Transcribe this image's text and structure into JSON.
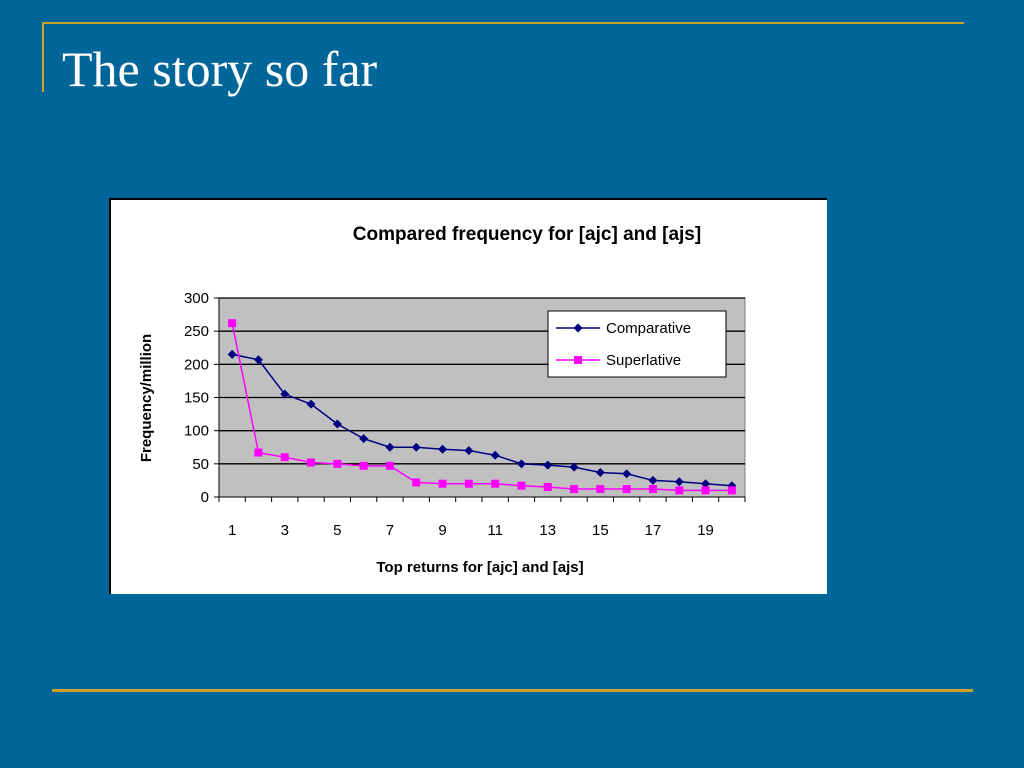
{
  "slide": {
    "title": "The story so far",
    "colors": {
      "background": "#006699",
      "accent_rule": "#c9a227",
      "title_text": "#ffffff"
    }
  },
  "chart_data": {
    "type": "line",
    "title": "Compared frequency for [ajc] and [ajs]",
    "xlabel": "Top returns for [ajc] and [ajs]",
    "ylabel": "Frequency/million",
    "x": [
      1,
      2,
      3,
      4,
      5,
      6,
      7,
      8,
      9,
      10,
      11,
      12,
      13,
      14,
      15,
      16,
      17,
      18,
      19,
      20
    ],
    "x_tick_labels": [
      "1",
      "3",
      "5",
      "7",
      "9",
      "11",
      "13",
      "15",
      "17",
      "19"
    ],
    "y_tick_labels": [
      "0",
      "50",
      "100",
      "150",
      "200",
      "250",
      "300"
    ],
    "ylim": [
      0,
      300
    ],
    "grid": "horizontal",
    "plot_background": "#c0c0c0",
    "legend_position": "top-right",
    "series": [
      {
        "name": "Comparative",
        "color": "#000080",
        "marker": "diamond",
        "values": [
          215,
          207,
          155,
          140,
          110,
          88,
          75,
          75,
          72,
          70,
          63,
          50,
          48,
          45,
          37,
          35,
          25,
          23,
          20,
          17
        ]
      },
      {
        "name": "Superlative",
        "color": "#ff00ff",
        "marker": "square",
        "values": [
          262,
          67,
          60,
          52,
          50,
          47,
          47,
          22,
          20,
          20,
          20,
          17,
          15,
          12,
          12,
          12,
          12,
          10,
          10,
          10
        ]
      }
    ]
  }
}
